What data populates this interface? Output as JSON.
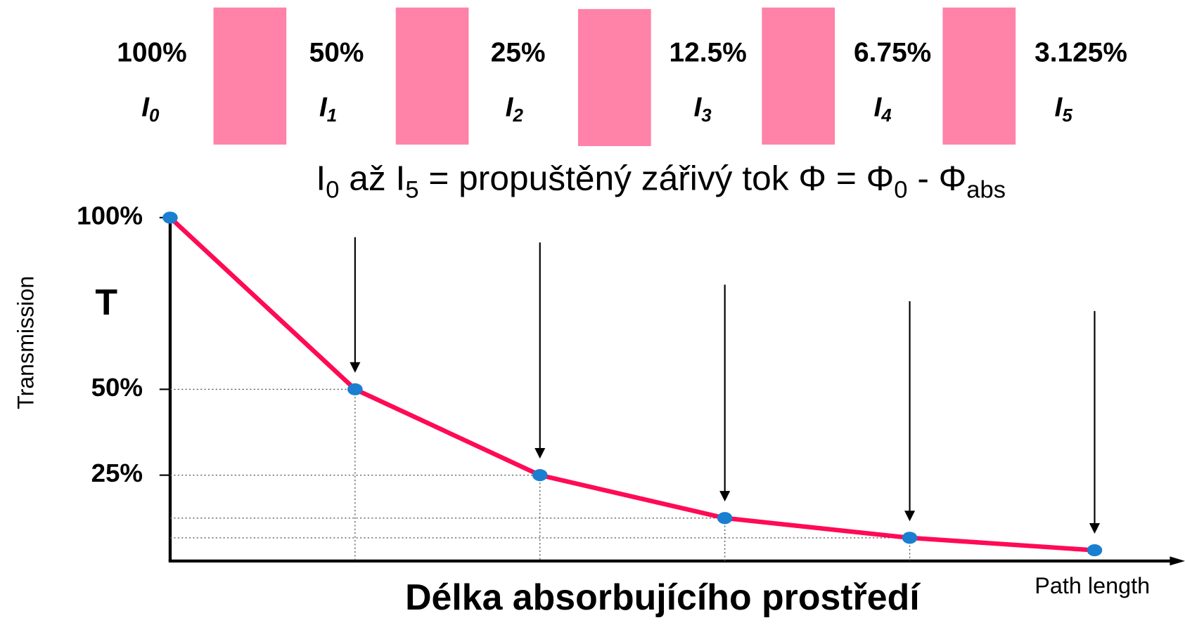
{
  "header": {
    "percent_labels": [
      "100%",
      "50%",
      "25%",
      "12.5%",
      "6.75%",
      "3.125%"
    ],
    "intensity_labels": [
      "I",
      "I",
      "I",
      "I",
      "I",
      "I"
    ],
    "intensity_subscripts": [
      "0",
      "1",
      "2",
      "3",
      "4",
      "5"
    ],
    "formula": [
      "I",
      "0",
      " až I",
      "5",
      " = propuštěný zářivý tok Φ = Φ",
      "0",
      " - Φ",
      "abs"
    ]
  },
  "chart_data": {
    "type": "line",
    "x": [
      0,
      1,
      2,
      3,
      4,
      5
    ],
    "values": [
      100,
      50,
      25,
      12.5,
      6.75,
      3.125
    ],
    "xlim": [
      0,
      5.45
    ],
    "ylim": [
      0,
      100
    ],
    "yticks": [
      {
        "value": 100,
        "label": "100%"
      },
      {
        "value": 50,
        "label": "50%"
      },
      {
        "value": 25,
        "label": "25%"
      }
    ],
    "color": "#ff0a55",
    "marker_color": "#1a7fd0",
    "y_symbol": "T",
    "ylabel": "Transmission",
    "xlabel": "Délka absorbujícího prostředí",
    "xlabel_en": "Path length"
  }
}
